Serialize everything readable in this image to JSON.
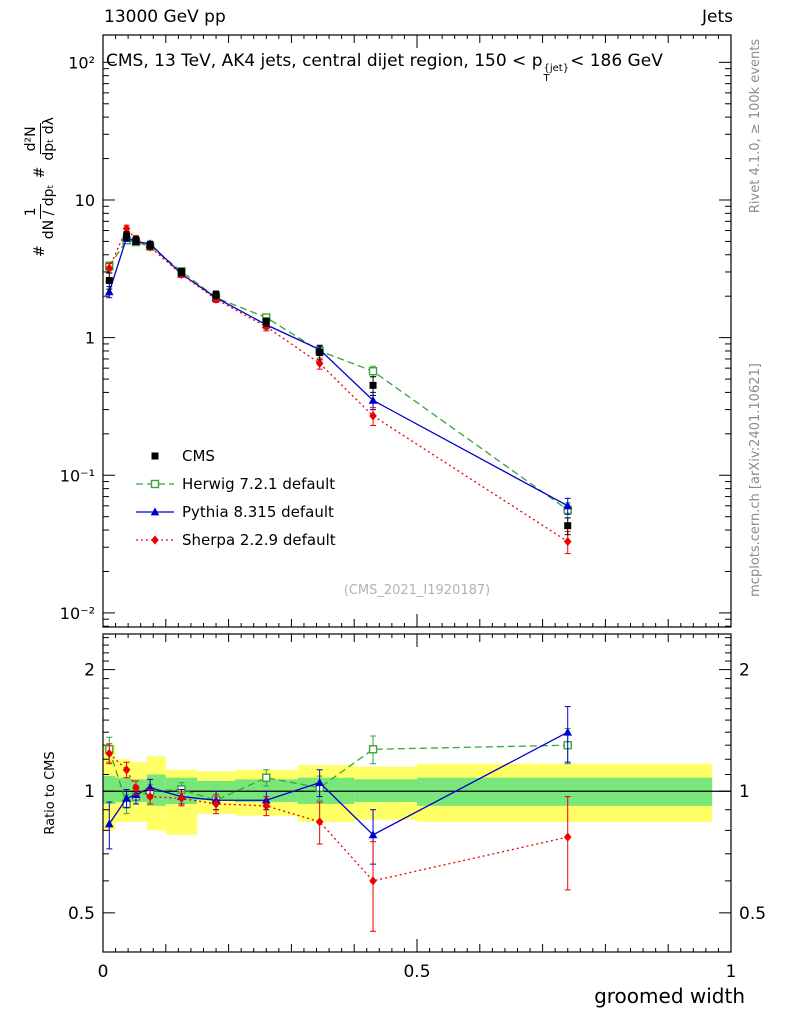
{
  "page": {
    "top_left": "13000 GeV pp",
    "top_right": "Jets",
    "watermark": "(CMS_2021_I1920187)",
    "right_label_top": "Rivet 4.1.0, ≥ 100k events",
    "right_label_bottom": "mcplots.cern.ch [arXiv:2401.10621]"
  },
  "titles": {
    "main_pre": "CMS, 13 TeV, AK4 jets, central dijet region, 150 < p",
    "main_sup": "{jet}",
    "main_sub": "T",
    "main_post": "< 186 GeV",
    "xlabel": "groomed width",
    "ratio_ylabel": "Ratio to CMS",
    "ylabel_hash": "#",
    "ylabel_frac1_num": "1",
    "ylabel_frac1_den": "dN / dpₜ",
    "ylabel_frac2_num": "d²N",
    "ylabel_frac2_den": "dpₜ dλ"
  },
  "chart_data": {
    "type": "line",
    "title": "CMS, 13 TeV, AK4 jets, central dijet region, 150 < pT(jet) < 186 GeV",
    "xlabel": "groomed width",
    "ratio_label": "Ratio to CMS",
    "xlim": [
      0,
      1
    ],
    "x": [
      0.01,
      0.0375,
      0.0525,
      0.075,
      0.125,
      0.18,
      0.26,
      0.345,
      0.43,
      0.74
    ],
    "xticks": [
      {
        "v": 0,
        "label": "0"
      },
      {
        "v": 0.5,
        "label": "0.5"
      },
      {
        "v": 1,
        "label": "1"
      }
    ],
    "main": {
      "yscale": "log",
      "ylim": [
        0.0079,
        158
      ],
      "yticks": [
        {
          "v": 100,
          "label": "10²"
        },
        {
          "v": 10,
          "label": "10"
        },
        {
          "v": 1,
          "label": "1"
        },
        {
          "v": 0.1,
          "label": "10⁻¹"
        },
        {
          "v": 0.01,
          "label": "10⁻²"
        }
      ]
    },
    "ratio": {
      "yscale": "log",
      "ylim": [
        0.4,
        2.45
      ],
      "yticks": [
        {
          "v": 2,
          "label": "2"
        },
        {
          "v": 1,
          "label": "1"
        },
        {
          "v": 0.5,
          "label": "0.5"
        }
      ],
      "bands": {
        "yellow_color": "#ffff66",
        "green_color": "#79e679",
        "edges": [
          0,
          0.02,
          0.045,
          0.07,
          0.1,
          0.15,
          0.21,
          0.31,
          0.4,
          0.5,
          0.97
        ],
        "yellow": [
          [
            0.8,
            1.3
          ],
          [
            0.84,
            1.2
          ],
          [
            0.84,
            1.18
          ],
          [
            0.8,
            1.22
          ],
          [
            0.78,
            1.13
          ],
          [
            0.88,
            1.12
          ],
          [
            0.87,
            1.13
          ],
          [
            0.84,
            1.16
          ],
          [
            0.85,
            1.15
          ],
          [
            0.84,
            1.17
          ]
        ],
        "green": [
          [
            0.93,
            1.09
          ],
          [
            0.94,
            1.08
          ],
          [
            0.94,
            1.07
          ],
          [
            0.92,
            1.1
          ],
          [
            0.93,
            1.08
          ],
          [
            0.95,
            1.06
          ],
          [
            0.94,
            1.07
          ],
          [
            0.93,
            1.08
          ],
          [
            0.94,
            1.07
          ],
          [
            0.92,
            1.08
          ]
        ]
      }
    },
    "series": [
      {
        "name": "CMS",
        "color": "#000000",
        "marker": "square-filled",
        "line": "none",
        "main": {
          "values": [
            2.6,
            5.5,
            5.1,
            4.7,
            3.0,
            2.05,
            1.3,
            0.78,
            0.45,
            0.043
          ],
          "errors": [
            0.35,
            0.4,
            0.35,
            0.3,
            0.18,
            0.13,
            0.09,
            0.09,
            0.07,
            0.006
          ]
        },
        "ratio": null
      },
      {
        "name": "Herwig 7.2.1 default",
        "color": "#3aa33a",
        "marker": "square-open",
        "line": "dashed",
        "main": {
          "values": [
            3.3,
            5.1,
            4.95,
            4.6,
            3.03,
            1.95,
            1.4,
            0.8,
            0.57,
            0.056
          ],
          "errors": [
            0.25,
            0.3,
            0.25,
            0.22,
            0.14,
            0.1,
            0.08,
            0.06,
            0.05,
            0.007
          ]
        },
        "ratio": {
          "values": [
            1.27,
            0.93,
            0.97,
            1.0,
            1.01,
            0.95,
            1.08,
            1.02,
            1.27,
            1.3
          ],
          "errors": [
            0.09,
            0.05,
            0.04,
            0.04,
            0.04,
            0.05,
            0.05,
            0.07,
            0.1,
            0.13
          ]
        }
      },
      {
        "name": "Pythia 8.315 default",
        "color": "#0000cc",
        "marker": "triangle-filled",
        "line": "solid",
        "main": {
          "values": [
            2.15,
            5.3,
            5.0,
            4.8,
            2.9,
            1.95,
            1.24,
            0.82,
            0.35,
            0.06
          ],
          "errors": [
            0.2,
            0.3,
            0.25,
            0.22,
            0.14,
            0.1,
            0.08,
            0.06,
            0.05,
            0.008
          ]
        },
        "ratio": {
          "values": [
            0.83,
            0.96,
            0.98,
            1.02,
            0.97,
            0.95,
            0.95,
            1.05,
            0.78,
            1.4
          ],
          "errors": [
            0.11,
            0.05,
            0.05,
            0.05,
            0.04,
            0.05,
            0.05,
            0.08,
            0.12,
            0.22
          ]
        }
      },
      {
        "name": "Sherpa 2.2.9 default",
        "color": "#ee0000",
        "marker": "diamond-filled",
        "line": "dotted",
        "main": {
          "values": [
            3.2,
            6.2,
            5.2,
            4.55,
            2.88,
            1.9,
            1.2,
            0.65,
            0.27,
            0.033
          ],
          "errors": [
            0.25,
            0.35,
            0.3,
            0.22,
            0.14,
            0.1,
            0.08,
            0.06,
            0.04,
            0.006
          ]
        },
        "ratio": {
          "values": [
            1.24,
            1.13,
            1.02,
            0.97,
            0.96,
            0.93,
            0.92,
            0.84,
            0.6,
            0.77
          ],
          "errors": [
            0.07,
            0.05,
            0.04,
            0.04,
            0.04,
            0.05,
            0.05,
            0.1,
            0.15,
            0.2
          ]
        }
      }
    ],
    "legend_position": "left-middle",
    "grid": false
  }
}
